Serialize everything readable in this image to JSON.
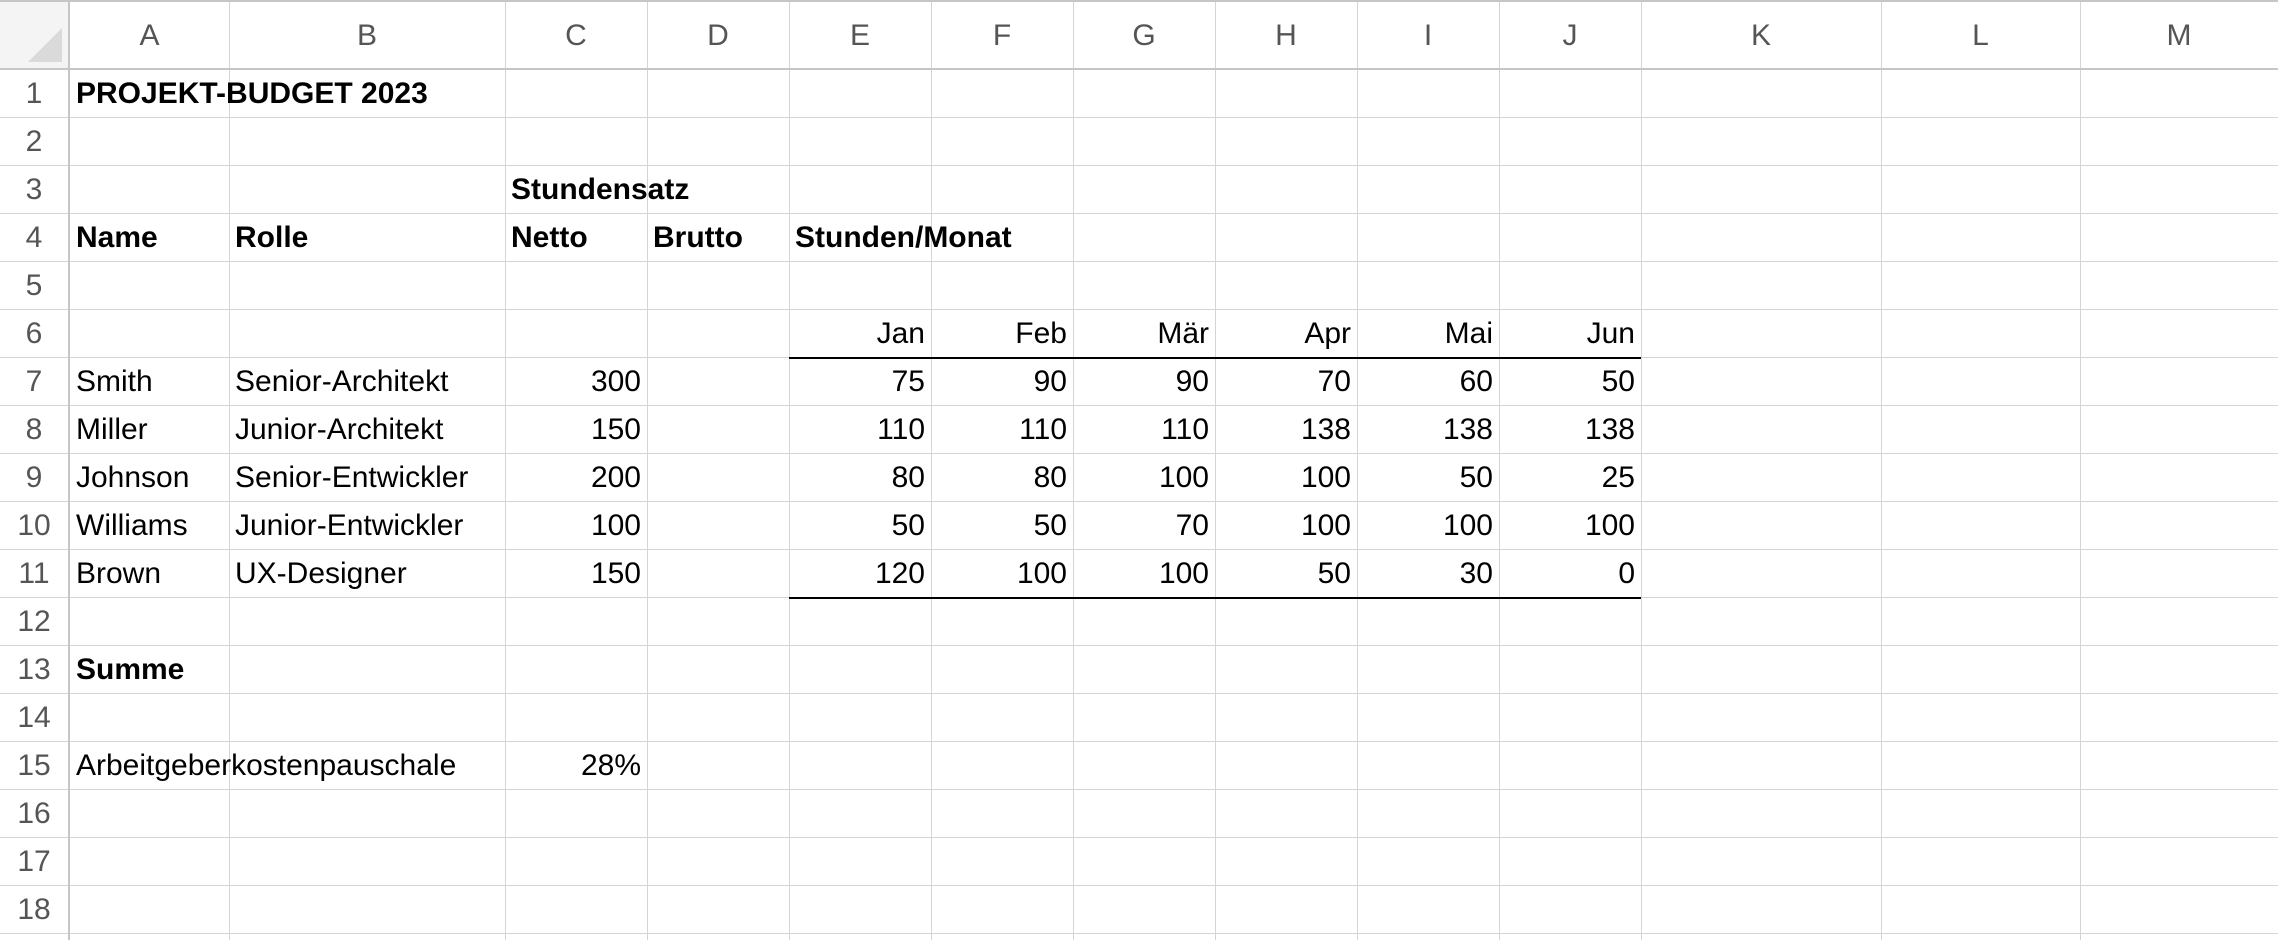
{
  "columns": [
    "A",
    "B",
    "C",
    "D",
    "E",
    "F",
    "G",
    "H",
    "I",
    "J",
    "K",
    "L",
    "M"
  ],
  "rows": [
    "1",
    "2",
    "3",
    "4",
    "5",
    "6",
    "7",
    "8",
    "9",
    "10",
    "11",
    "12",
    "13",
    "14",
    "15",
    "16",
    "17",
    "18"
  ],
  "title": "PROJEKT-BUDGET 2023",
  "headers": {
    "stundensatz": "Stundensatz",
    "name": "Name",
    "rolle": "Rolle",
    "netto": "Netto",
    "brutto": "Brutto",
    "stunden_monat": "Stunden/Monat"
  },
  "months": [
    "Jan",
    "Feb",
    "Mär",
    "Apr",
    "Mai",
    "Jun"
  ],
  "employees": [
    {
      "name": "Smith",
      "role": "Senior-Architekt",
      "rate": "300",
      "hours": [
        "75",
        "90",
        "90",
        "70",
        "60",
        "50"
      ]
    },
    {
      "name": "Miller",
      "role": "Junior-Architekt",
      "rate": "150",
      "hours": [
        "110",
        "110",
        "110",
        "138",
        "138",
        "138"
      ]
    },
    {
      "name": "Johnson",
      "role": "Senior-Entwickler",
      "rate": "200",
      "hours": [
        "80",
        "80",
        "100",
        "100",
        "50",
        "25"
      ]
    },
    {
      "name": "Williams",
      "role": "Junior-Entwickler",
      "rate": "100",
      "hours": [
        "50",
        "50",
        "70",
        "100",
        "100",
        "100"
      ]
    },
    {
      "name": "Brown",
      "role": "UX-Designer",
      "rate": "150",
      "hours": [
        "120",
        "100",
        "100",
        "50",
        "30",
        "0"
      ]
    }
  ],
  "summe_label": "Summe",
  "pauschale": {
    "label": "Arbeitgeberkostenpauschale",
    "value": "28%"
  },
  "colors": {
    "gridline": "#d4d4d4",
    "header_text": "#555555",
    "corner_bg": "#f4f4f4",
    "border": "#000000"
  }
}
